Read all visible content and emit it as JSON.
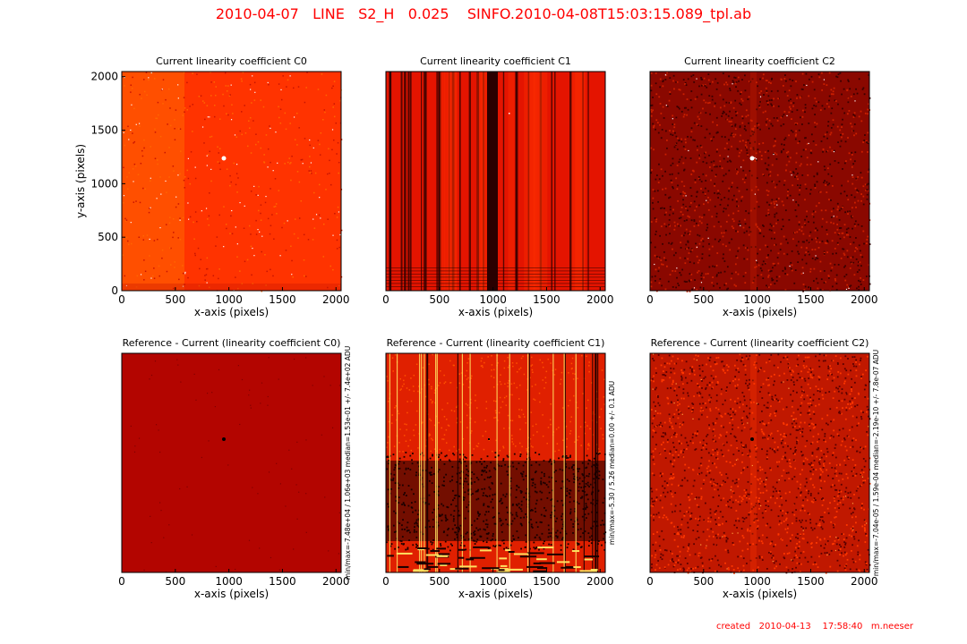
{
  "title": "2010-04-07   LINE   S2_H   0.025    SINFO.2010-04-08T15:03:15.089_tpl.ab",
  "footer": "created   2010-04-13    17:58:40   m.neeser",
  "chart_data": [
    {
      "type": "heatmap",
      "title": "Current linearity coefficient C0",
      "xlabel": "x-axis (pixels)",
      "ylabel": "y-axis (pixels)",
      "xlim": [
        0,
        2048
      ],
      "ylim": [
        0,
        2048
      ],
      "xticks": [
        "0",
        "500",
        "1000",
        "1500",
        "2000"
      ],
      "yticks": [
        "0",
        "500",
        "1000",
        "1500",
        "2000"
      ],
      "side_label": "",
      "pattern": "uniform-speckle",
      "colors": {
        "base": "#ff3300",
        "alt": "#ff6600",
        "dark": "#c81400",
        "hot": "#ffffff"
      }
    },
    {
      "type": "heatmap",
      "title": "Current linearity coefficient C1",
      "xlabel": "x-axis (pixels)",
      "ylabel": "",
      "xlim": [
        0,
        2048
      ],
      "ylim": [
        0,
        2048
      ],
      "xticks": [
        "0",
        "500",
        "1000",
        "1500",
        "2000"
      ],
      "yticks": [],
      "side_label": "",
      "pattern": "vertical-columns",
      "colors": {
        "base": "#e41400",
        "alt": "#ff3000",
        "dark": "#2a0000",
        "hot": "#ffffff"
      }
    },
    {
      "type": "heatmap",
      "title": "Current linearity coefficient C2",
      "xlabel": "x-axis (pixels)",
      "ylabel": "",
      "xlim": [
        0,
        2048
      ],
      "ylim": [
        0,
        2048
      ],
      "xticks": [
        "0",
        "500",
        "1000",
        "1500",
        "2000"
      ],
      "yticks": [],
      "side_label": "",
      "pattern": "dark-noise",
      "colors": {
        "base": "#8a0800",
        "alt": "#cc2000",
        "dark": "#3a0000",
        "hot": "#ffffff"
      }
    },
    {
      "type": "heatmap",
      "title": "Reference - Current (linearity coefficient C0)",
      "xlabel": "x-axis (pixels)",
      "ylabel": "",
      "xlim": [
        0,
        2048
      ],
      "ylim": [
        0,
        2048
      ],
      "xticks": [
        "0",
        "500",
        "1000",
        "1500",
        "2000"
      ],
      "yticks": [],
      "side_label": "min/max=-7.48e+04 / 1.06e+03 median=1.53e-01 +/- 7.4e+02 ADU",
      "pattern": "flat",
      "colors": {
        "base": "#b30500",
        "alt": "#b80800",
        "dark": "#800000",
        "hot": "#000000"
      }
    },
    {
      "type": "heatmap",
      "title": "Reference - Current (linearity coefficient C1)",
      "xlabel": "x-axis (pixels)",
      "ylabel": "",
      "xlim": [
        0,
        2048
      ],
      "ylim": [
        0,
        2048
      ],
      "xticks": [
        "0",
        "500",
        "1000",
        "1500",
        "2000"
      ],
      "yticks": [],
      "side_label": "min/max=-5.30 / 5.26 median=0.00 +/- 0.1 ADU",
      "pattern": "streaks",
      "colors": {
        "base": "#e02000",
        "alt": "#ff5000",
        "dark": "#1a0000",
        "hot": "#ffe060"
      }
    },
    {
      "type": "heatmap",
      "title": "Reference - Current (linearity coefficient C2)",
      "xlabel": "x-axis (pixels)",
      "ylabel": "",
      "xlim": [
        0,
        2048
      ],
      "ylim": [
        0,
        2048
      ],
      "xticks": [
        "0",
        "500",
        "1000",
        "1500",
        "2000"
      ],
      "yticks": [],
      "side_label": "min/max=-7.04e-05 / 1.59e-04 median=-2.19e-10 +/- 7.8e-07 ADU",
      "pattern": "bright-noise",
      "colors": {
        "base": "#c01800",
        "alt": "#ff3800",
        "dark": "#5a0000",
        "hot": "#ffa040"
      }
    }
  ]
}
